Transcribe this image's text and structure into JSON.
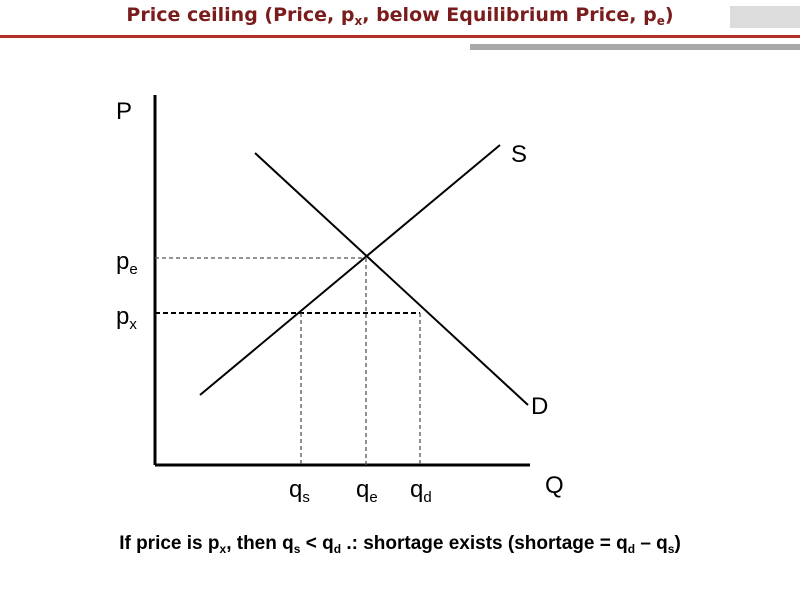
{
  "title": {
    "text_a": "Price ceiling (Price, p",
    "sub_x": "x",
    "text_b": ", below Equilibrium Price, p",
    "sub_e": "e",
    "text_c": ")"
  },
  "axes": {
    "y_label": "P",
    "x_label": "Q"
  },
  "curves": {
    "supply": "S",
    "demand": "D"
  },
  "price_labels": {
    "pe_base": "p",
    "pe_sub": "e",
    "px_base": "p",
    "px_sub": "x"
  },
  "quantity_labels": {
    "qs_base": "q",
    "qs_sub": "s",
    "qe_base": "q",
    "qe_sub": "e",
    "qd_base": "q",
    "qd_sub": "d"
  },
  "caption": {
    "a": "If price is p",
    "a_sub": "x",
    "b": ", then q",
    "b_sub": "s",
    "c": " < q",
    "c_sub": "d",
    "d": " .: shortage exists (shortage = q",
    "d_sub": "d",
    "e": " – q",
    "e_sub": "s",
    "f": ")"
  },
  "colors": {
    "title": "#7a1c1c",
    "header_bar": "#b3302a",
    "header_bar_grey": "#a8a8a8"
  }
}
